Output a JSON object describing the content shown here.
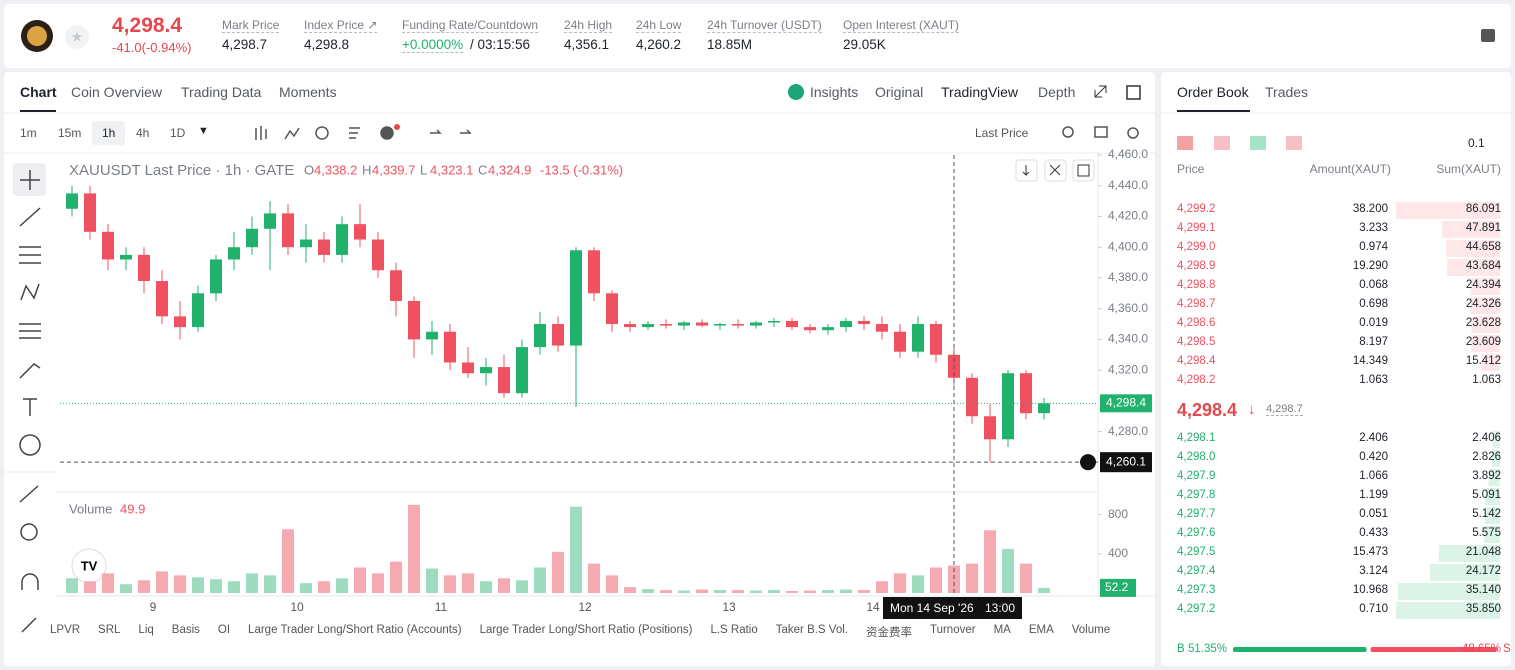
{
  "header": {
    "price": "4,298.4",
    "change": "-41.0(-0.94%)",
    "stats": [
      {
        "label": "Mark Price",
        "value": "4,298.7"
      },
      {
        "label": "Index Price ↗",
        "value": "4,298.8"
      },
      {
        "label": "Funding Rate/Countdown",
        "value": "+0.0000%",
        "extra": "/ 03:15:56"
      },
      {
        "label": "24h High",
        "value": "4,356.1"
      },
      {
        "label": "24h Low",
        "value": "4,260.2"
      },
      {
        "label": "24h Turnover (USDT)",
        "value": "18.85M"
      },
      {
        "label": "Open Interest (XAUT)",
        "value": "29.05K"
      }
    ]
  },
  "chart_tabs": [
    "Chart",
    "Coin Overview",
    "Trading Data",
    "Moments"
  ],
  "view_tabs": [
    "Insights",
    "Original",
    "TradingView",
    "Depth"
  ],
  "intervals": [
    "1m",
    "15m",
    "1h",
    "4h",
    "1D"
  ],
  "price_type": "Last Price",
  "chart_data": {
    "type": "candlestick",
    "title": "XAUUSDT Last Price · 1h · GATE",
    "legend": [
      {
        "key": "O",
        "value": "4,338.2"
      },
      {
        "key": "H",
        "value": "4,339.7"
      },
      {
        "key": "L",
        "value": "4,323.1"
      },
      {
        "key": "C",
        "value": "4,324.9"
      }
    ],
    "legend_change": "-13.5 (-0.31%)",
    "categories": [
      null,
      null,
      null,
      null,
      null,
      "9",
      null,
      null,
      null,
      null,
      null,
      null,
      null,
      "10",
      null,
      null,
      null,
      null,
      null,
      null,
      null,
      "11",
      null,
      null,
      null,
      null,
      null,
      null,
      null,
      "12",
      null,
      null,
      null,
      null,
      null,
      null,
      null,
      "13",
      null,
      null,
      null,
      null,
      null,
      null,
      null,
      "14",
      null,
      null,
      null,
      null,
      null,
      null,
      null,
      null,
      null
    ],
    "open": [
      4425,
      4435,
      4410,
      4392,
      4395,
      4378,
      4355,
      4348,
      4370,
      4392,
      4400,
      4412,
      4422,
      4400,
      4405,
      4395,
      4415,
      4405,
      4385,
      4365,
      4340,
      4345,
      4325,
      4318,
      4322,
      4305,
      4335,
      4350,
      4336,
      4398,
      4370,
      4350,
      4348,
      4350,
      4349,
      4351,
      4349,
      4350,
      4349,
      4351,
      4352,
      4348,
      4346,
      4348,
      4352,
      4350,
      4345,
      4332,
      4350,
      4330,
      4315,
      4290,
      4275,
      4318,
      4292
    ],
    "high": [
      4440,
      4440,
      4415,
      4400,
      4400,
      4385,
      4365,
      4375,
      4395,
      4410,
      4420,
      4430,
      4428,
      4415,
      4410,
      4420,
      4428,
      4410,
      4390,
      4368,
      4352,
      4350,
      4335,
      4328,
      4330,
      4340,
      4358,
      4355,
      4400,
      4400,
      4372,
      4352,
      4352,
      4353,
      4352,
      4353,
      4351,
      4353,
      4352,
      4354,
      4354,
      4350,
      4350,
      4354,
      4355,
      4355,
      4350,
      4355,
      4352,
      4335,
      4318,
      4298,
      4320,
      4320,
      4302
    ],
    "low": [
      4420,
      4405,
      4385,
      4385,
      4370,
      4350,
      4340,
      4345,
      4365,
      4385,
      4395,
      4385,
      4395,
      4390,
      4390,
      4390,
      4400,
      4380,
      4355,
      4328,
      4330,
      4320,
      4315,
      4310,
      4302,
      4302,
      4330,
      4332,
      4296,
      4365,
      4345,
      4345,
      4346,
      4347,
      4346,
      4348,
      4346,
      4347,
      4347,
      4348,
      4346,
      4344,
      4343,
      4345,
      4346,
      4340,
      4328,
      4328,
      4325,
      4310,
      4285,
      4260,
      4270,
      4288,
      4288
    ],
    "close": [
      4435,
      4410,
      4392,
      4395,
      4378,
      4355,
      4348,
      4370,
      4392,
      4400,
      4412,
      4422,
      4400,
      4405,
      4395,
      4415,
      4405,
      4385,
      4365,
      4340,
      4345,
      4325,
      4318,
      4322,
      4305,
      4335,
      4350,
      4336,
      4398,
      4370,
      4350,
      4348,
      4350,
      4349,
      4351,
      4349,
      4350,
      4349,
      4351,
      4352,
      4348,
      4346,
      4348,
      4352,
      4350,
      4345,
      4332,
      4350,
      4330,
      4315,
      4290,
      4275,
      4318,
      4292,
      4298.4
    ],
    "volume": [
      150,
      120,
      200,
      90,
      130,
      220,
      180,
      160,
      140,
      120,
      200,
      180,
      650,
      100,
      120,
      150,
      260,
      200,
      320,
      900,
      250,
      180,
      200,
      120,
      150,
      130,
      260,
      420,
      880,
      300,
      180,
      60,
      40,
      30,
      25,
      35,
      30,
      30,
      25,
      30,
      20,
      25,
      30,
      35,
      30,
      120,
      200,
      180,
      260,
      280,
      300,
      640,
      450,
      300,
      52.2
    ],
    "ylim": [
      4242,
      4460
    ],
    "yticks": [
      {
        "value": 4460,
        "label": "4,460.0"
      },
      {
        "value": 4440,
        "label": "4,440.0"
      },
      {
        "value": 4420,
        "label": "4,420.0"
      },
      {
        "value": 4400,
        "label": "4,400.0"
      },
      {
        "value": 4380,
        "label": "4,380.0"
      },
      {
        "value": 4360,
        "label": "4,360.0"
      },
      {
        "value": 4340,
        "label": "4,340.0"
      },
      {
        "value": 4320,
        "label": "4,320.0"
      },
      {
        "value": 4280,
        "label": "4,280.0"
      }
    ],
    "last_price": {
      "value": 4298.4,
      "label": "4,298.4"
    },
    "crosshair_price": {
      "value": 4260.1,
      "label": "4,260.1"
    },
    "crosshair_date": "Mon 14 Sep '26",
    "crosshair_time": "13:00",
    "volume_label": "Volume",
    "volume_value": 49.9,
    "volume_last": 52.2,
    "volume_ylim": [
      0,
      1000
    ],
    "volume_yticks": [
      400,
      800
    ]
  },
  "indicators": [
    "LPVR",
    "SRL",
    "Liq",
    "Basis",
    "OI",
    "Large Trader Long/Short Ratio (Accounts)",
    "Large Trader Long/Short Ratio (Positions)",
    "L.S Ratio",
    "Taker B.S Vol.",
    "资金费率",
    "Turnover",
    "MA",
    "EMA",
    "Volume"
  ],
  "order_book": {
    "tabs": [
      "Order Book",
      "Trades"
    ],
    "precision": "0.1",
    "columns": [
      "Price",
      "Amount(XAUT)",
      "Sum(XAUT)"
    ],
    "asks": [
      [
        "4,299.2",
        "38.200",
        "86.091"
      ],
      [
        "4,299.1",
        "3.233",
        "47.891"
      ],
      [
        "4,299.0",
        "0.974",
        "44.658"
      ],
      [
        "4,298.9",
        "19.290",
        "43.684"
      ],
      [
        "4,298.8",
        "0.068",
        "24.394"
      ],
      [
        "4,298.7",
        "0.698",
        "24.326"
      ],
      [
        "4,298.6",
        "0.019",
        "23.628"
      ],
      [
        "4,298.5",
        "8.197",
        "23.609"
      ],
      [
        "4,298.4",
        "14.349",
        "15.412"
      ],
      [
        "4,298.2",
        "1.063",
        "1.063"
      ]
    ],
    "mid_price": "4,298.4",
    "mark_price": "4,298.7",
    "bids": [
      [
        "4,298.1",
        "2.406",
        "2.406"
      ],
      [
        "4,298.0",
        "0.420",
        "2.826"
      ],
      [
        "4,297.9",
        "1.066",
        "3.892"
      ],
      [
        "4,297.8",
        "1.199",
        "5.091"
      ],
      [
        "4,297.7",
        "0.051",
        "5.142"
      ],
      [
        "4,297.6",
        "0.433",
        "5.575"
      ],
      [
        "4,297.5",
        "15.473",
        "21.048"
      ],
      [
        "4,297.4",
        "3.124",
        "24.172"
      ],
      [
        "4,297.3",
        "10.968",
        "35.140"
      ],
      [
        "4,297.2",
        "0.710",
        "35.850"
      ]
    ],
    "buy_key": "B",
    "buy_ratio": "51.35%",
    "sell_ratio": "48.65%",
    "sell_key": "S"
  }
}
